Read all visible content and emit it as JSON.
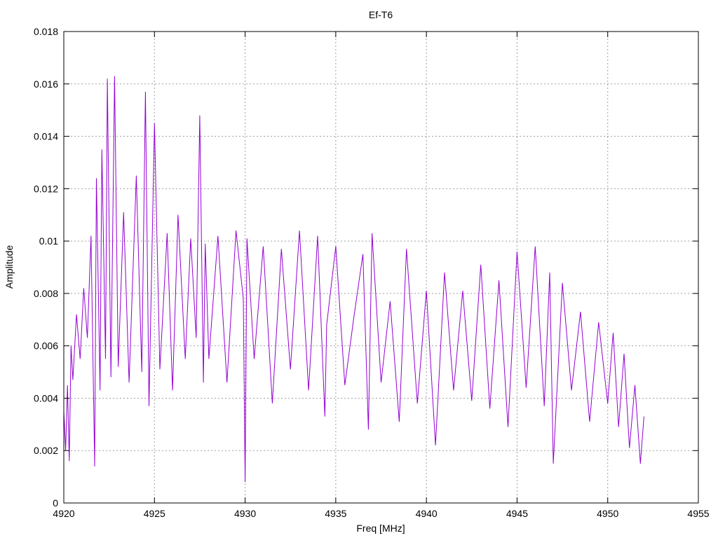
{
  "chart_data": {
    "type": "line",
    "title": "Ef-T6",
    "xlabel": "Freq [MHz]",
    "ylabel": "Amplitude",
    "xlim": [
      4920,
      4955
    ],
    "ylim": [
      0,
      0.018
    ],
    "xticks": [
      "4920",
      "4925",
      "4930",
      "4935",
      "4940",
      "4945",
      "4950",
      "4955"
    ],
    "yticks": [
      "0",
      "0.002",
      "0.004",
      "0.006",
      "0.008",
      "0.01",
      "0.012",
      "0.014",
      "0.016",
      "0.018"
    ],
    "grid": true,
    "line_color": "#9400d3",
    "series": [
      {
        "x": [
          4920.0,
          4920.1,
          4920.2,
          4920.3,
          4920.4,
          4920.5,
          4920.7,
          4920.9,
          4921.1,
          4921.3,
          4921.5,
          4921.7,
          4921.8,
          4922.0,
          4922.1,
          4922.3,
          4922.4,
          4922.6,
          4922.8,
          4923.0,
          4923.3,
          4923.6,
          4924.0,
          4924.3,
          4924.5,
          4924.7,
          4925.0,
          4925.3,
          4925.7,
          4926.0,
          4926.3,
          4926.7,
          4927.0,
          4927.3,
          4927.5,
          4927.7,
          4927.8,
          4928.0,
          4928.5,
          4929.0,
          4929.5,
          4929.9,
          4930.0,
          4930.1,
          4930.5,
          4931.0,
          4931.5,
          4932.0,
          4932.5,
          4933.0,
          4933.5,
          4934.0,
          4934.4,
          4934.5,
          4935.0,
          4935.5,
          4936.0,
          4936.5,
          4936.8,
          4937.0,
          4937.5,
          4938.0,
          4938.5,
          4938.9,
          4939.5,
          4940.0,
          4940.5,
          4941.0,
          4941.5,
          4942.0,
          4942.5,
          4943.0,
          4943.5,
          4944.0,
          4944.5,
          4945.0,
          4945.5,
          4946.0,
          4946.5,
          4946.8,
          4947.0,
          4947.5,
          4948.0,
          4948.5,
          4949.0,
          4949.5,
          4950.0,
          4950.3,
          4950.6,
          4950.9,
          4951.2,
          4951.5,
          4951.8,
          4952.0
        ],
        "values": [
          0.0035,
          0.002,
          0.0045,
          0.0016,
          0.006,
          0.0047,
          0.0072,
          0.0055,
          0.0082,
          0.0063,
          0.0102,
          0.0014,
          0.0124,
          0.0043,
          0.0135,
          0.0055,
          0.0162,
          0.0048,
          0.0163,
          0.0052,
          0.0111,
          0.0046,
          0.0125,
          0.005,
          0.0157,
          0.0037,
          0.0145,
          0.0051,
          0.0103,
          0.0043,
          0.011,
          0.0055,
          0.0101,
          0.0063,
          0.0148,
          0.0046,
          0.0099,
          0.0055,
          0.0102,
          0.0046,
          0.0104,
          0.0078,
          0.0008,
          0.0101,
          0.0055,
          0.0098,
          0.0038,
          0.0097,
          0.0051,
          0.0104,
          0.0043,
          0.0102,
          0.0033,
          0.0068,
          0.0098,
          0.0045,
          0.0071,
          0.0095,
          0.0028,
          0.0103,
          0.0046,
          0.0077,
          0.0031,
          0.0097,
          0.0038,
          0.0081,
          0.0022,
          0.0088,
          0.0043,
          0.0081,
          0.0039,
          0.0091,
          0.0036,
          0.0085,
          0.0029,
          0.0096,
          0.0044,
          0.0098,
          0.0037,
          0.0088,
          0.0015,
          0.0084,
          0.0043,
          0.0073,
          0.0031,
          0.0069,
          0.0038,
          0.0065,
          0.0029,
          0.0057,
          0.0021,
          0.0045,
          0.0015,
          0.0033
        ]
      }
    ]
  }
}
